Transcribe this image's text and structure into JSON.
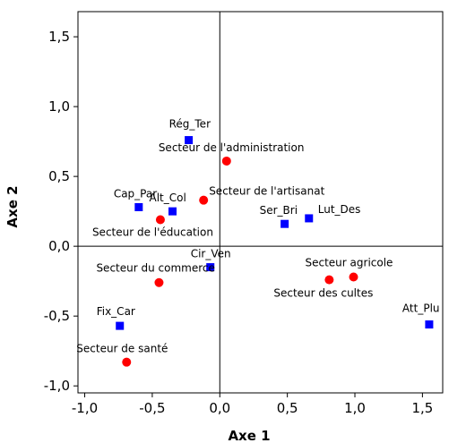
{
  "chart_data": {
    "type": "scatter",
    "title": "",
    "xlabel": "Axe 1",
    "ylabel": "Axe 2",
    "xlim": [
      -1.05,
      1.65
    ],
    "ylim": [
      -1.05,
      1.68
    ],
    "xticks": [
      "-1,0",
      "-0,5",
      "0,0",
      "0,5",
      "1,0",
      "1,5"
    ],
    "xtick_values": [
      -1.0,
      -0.5,
      0.0,
      0.5,
      1.0,
      1.5
    ],
    "yticks": [
      "1,5",
      "1,0",
      "0,5",
      "0,0",
      "-0,5",
      "-1,0"
    ],
    "ytick_values": [
      1.5,
      1.0,
      0.5,
      0.0,
      -0.5,
      -1.0
    ],
    "grid": false,
    "reference_lines": {
      "x": 0.0,
      "y": 0.0
    },
    "series": [
      {
        "marker": "square",
        "color": "#0000ff",
        "points": [
          {
            "label": "Rég_Ter",
            "x": -0.23,
            "y": 0.76
          },
          {
            "label": "Cap_Par",
            "x": -0.6,
            "y": 0.28
          },
          {
            "label": "Alt_Col",
            "x": -0.35,
            "y": 0.25
          },
          {
            "label": "Ser_Bri",
            "x": 0.48,
            "y": 0.16
          },
          {
            "label": "Lut_Des",
            "x": 0.66,
            "y": 0.2
          },
          {
            "label": "Cir_Ven",
            "x": -0.07,
            "y": -0.15
          },
          {
            "label": "Fix_Car",
            "x": -0.74,
            "y": -0.57
          },
          {
            "label": "Att_Plu",
            "x": 1.55,
            "y": -0.56
          }
        ]
      },
      {
        "marker": "circle",
        "color": "#ff0000",
        "points": [
          {
            "label": "Secteur de l'administration",
            "x": 0.05,
            "y": 0.61
          },
          {
            "label": "Secteur de l'artisanat",
            "x": -0.12,
            "y": 0.33
          },
          {
            "label": "Secteur de l'éducation",
            "x": -0.44,
            "y": 0.19
          },
          {
            "label": "Secteur du commerce",
            "x": -0.45,
            "y": -0.26
          },
          {
            "label": "Secteur agricole",
            "x": 0.99,
            "y": -0.22
          },
          {
            "label": "Secteur des cultes",
            "x": 0.81,
            "y": -0.24
          },
          {
            "label": "Secteur de santé",
            "x": -0.69,
            "y": -0.83
          }
        ]
      }
    ]
  }
}
